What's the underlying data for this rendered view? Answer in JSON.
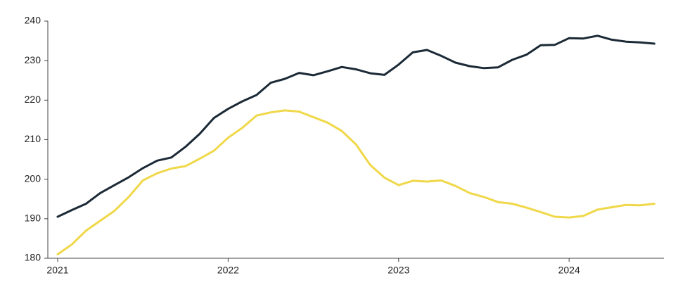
{
  "chart_data": {
    "type": "line",
    "categories": [
      "2021",
      null,
      null,
      null,
      null,
      null,
      null,
      null,
      null,
      null,
      null,
      null,
      "2022",
      null,
      null,
      null,
      null,
      null,
      null,
      null,
      null,
      null,
      null,
      null,
      "2023",
      null,
      null,
      null,
      null,
      null,
      null,
      null,
      null,
      null,
      null,
      null,
      "2024",
      null,
      null,
      null,
      null,
      null,
      null
    ],
    "series": [
      {
        "color": "#1b2a36",
        "values": [
          190.5,
          192.2,
          193.8,
          196.5,
          198.5,
          200.5,
          202.8,
          204.7,
          205.5,
          208.2,
          211.5,
          215.5,
          217.8,
          219.7,
          221.3,
          224.4,
          225.4,
          226.9,
          226.3,
          227.3,
          228.4,
          227.8,
          226.8,
          226.4,
          229.0,
          232.1,
          232.7,
          231.2,
          229.5,
          228.6,
          228.1,
          228.3,
          230.2,
          231.5,
          233.9,
          234.0,
          235.7,
          235.6,
          236.3,
          235.3,
          234.8,
          234.6,
          234.3
        ]
      },
      {
        "color": "#f0d84a",
        "values": [
          181.0,
          183.5,
          187.0,
          189.5,
          192.0,
          195.5,
          199.7,
          201.5,
          202.7,
          203.3,
          205.2,
          207.2,
          210.5,
          213.0,
          216.1,
          216.9,
          217.4,
          217.1,
          215.7,
          214.3,
          212.2,
          208.8,
          203.6,
          200.4,
          198.5,
          199.6,
          199.4,
          199.7,
          198.3,
          196.5,
          195.5,
          194.2,
          193.8,
          192.8,
          191.7,
          190.5,
          190.3,
          190.7,
          192.3,
          192.9,
          193.5,
          193.4,
          193.8
        ]
      }
    ],
    "ylim": [
      180,
      240
    ],
    "yticks": [
      180,
      190,
      200,
      210,
      220,
      230,
      240
    ],
    "grid": false
  }
}
